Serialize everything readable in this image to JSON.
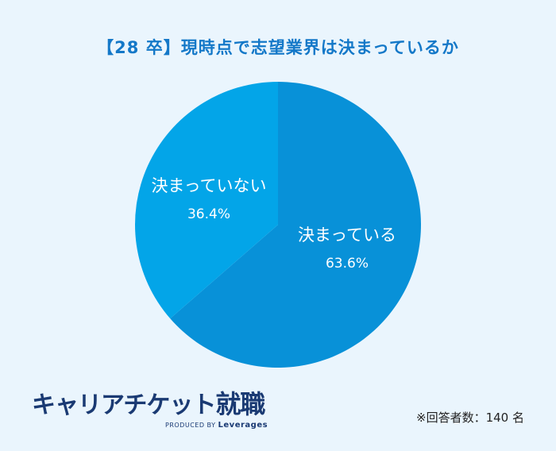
{
  "colors": {
    "background": "#eaf5fd",
    "title": "#1478c8",
    "slice_decided": "#0891d8",
    "slice_undecided": "#03a5e8",
    "logo": "#1a3a73"
  },
  "chart_data": {
    "type": "pie",
    "title": "【28 卒】現時点で志望業界は決まっているか",
    "slices": [
      {
        "label": "決まっている",
        "value": 63.6,
        "value_text": "63.6%"
      },
      {
        "label": "決まっていない",
        "value": 36.4,
        "value_text": "36.4%"
      }
    ]
  },
  "logo": {
    "main": "キャリアチケット",
    "suffix": "就職",
    "produced_by": "PRODUCED BY",
    "company": "Leverages"
  },
  "note": "※回答者数：140 名"
}
